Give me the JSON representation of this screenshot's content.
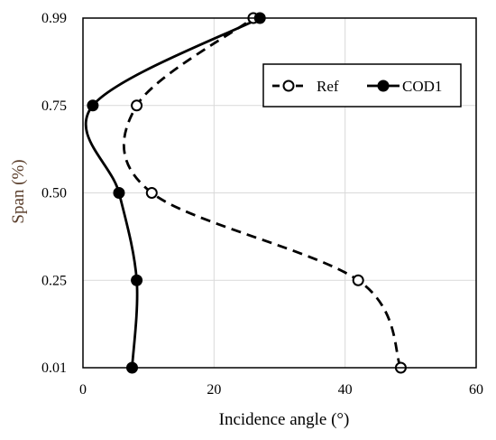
{
  "chart_data": {
    "type": "line",
    "title": "",
    "xlabel": "Incidence angle (°)",
    "ylabel": "Span (%)",
    "xlim": [
      0,
      60
    ],
    "xticks": [
      0,
      20,
      40,
      60
    ],
    "xtick_labels": [
      "0",
      "20",
      "40",
      "60"
    ],
    "yticks": [
      0.01,
      0.25,
      0.5,
      0.75,
      0.99
    ],
    "ytick_labels": [
      "0.01",
      "0.25",
      "0.50",
      "0.75",
      "0.99"
    ],
    "grid": true,
    "legend_position": "top-right",
    "series": [
      {
        "name": "Ref",
        "marker": "open-circle",
        "line_style": "dashed",
        "color": "#000000",
        "points": [
          {
            "x": 48.5,
            "y": 0.01
          },
          {
            "x": 42,
            "y": 0.25
          },
          {
            "x": 10.5,
            "y": 0.5
          },
          {
            "x": 8.2,
            "y": 0.75
          },
          {
            "x": 26,
            "y": 0.99
          }
        ]
      },
      {
        "name": "COD1",
        "marker": "filled-circle",
        "line_style": "solid",
        "color": "#000000",
        "points": [
          {
            "x": 7.5,
            "y": 0.01
          },
          {
            "x": 8.2,
            "y": 0.25
          },
          {
            "x": 5.5,
            "y": 0.5
          },
          {
            "x": 1.5,
            "y": 0.75
          },
          {
            "x": 27,
            "y": 0.99
          }
        ]
      }
    ]
  }
}
